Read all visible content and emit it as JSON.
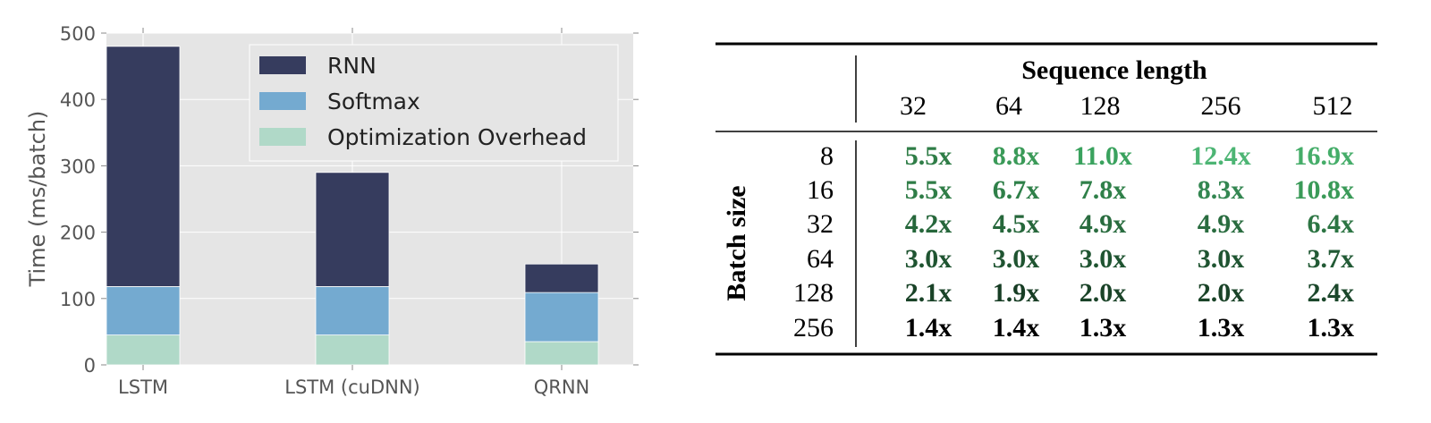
{
  "chart_data": {
    "type": "bar",
    "stacked": true,
    "categories": [
      "LSTM",
      "LSTM (cuDNN)",
      "QRNN"
    ],
    "series": [
      {
        "name": "Optimization Overhead",
        "values": [
          45,
          45,
          35
        ],
        "color": "#b0d9c8"
      },
      {
        "name": "Softmax",
        "values": [
          73,
          73,
          74
        ],
        "color": "#74aad0"
      },
      {
        "name": "RNN",
        "values": [
          362,
          172,
          43
        ],
        "color": "#363c5e"
      }
    ],
    "legend_order": [
      "RNN",
      "Softmax",
      "Optimization Overhead"
    ],
    "ylabel": "Time (ms/batch)",
    "xlabel": "",
    "ylim": [
      0,
      500
    ],
    "yticks": [
      "0",
      "100",
      "200",
      "300",
      "400",
      "500"
    ],
    "grid": true,
    "legend_position": "top-right",
    "plot_background": "#e5e5e5"
  },
  "table": {
    "header": "Sequence length",
    "row_header": "Batch size",
    "columns": [
      "32",
      "64",
      "128",
      "256",
      "512"
    ],
    "rows": [
      {
        "label": "8",
        "cells": [
          "5.5x",
          "8.8x",
          "11.0x",
          "12.4x",
          "16.9x"
        ],
        "colors": [
          "#2f7d47",
          "#3a9a58",
          "#3aa25e",
          "#4db574",
          "#45ad69"
        ]
      },
      {
        "label": "16",
        "cells": [
          "5.5x",
          "6.7x",
          "7.8x",
          "8.3x",
          "10.8x"
        ],
        "colors": [
          "#2f7d47",
          "#2f8049",
          "#2f8049",
          "#338651",
          "#3a9a58"
        ]
      },
      {
        "label": "32",
        "cells": [
          "4.2x",
          "4.5x",
          "4.9x",
          "4.9x",
          "6.4x"
        ],
        "colors": [
          "#26673b",
          "#26673b",
          "#296c3f",
          "#296c3f",
          "#2c7543"
        ]
      },
      {
        "label": "64",
        "cells": [
          "3.0x",
          "3.0x",
          "3.0x",
          "3.0x",
          "3.7x"
        ],
        "colors": [
          "#1f5431",
          "#1f5431",
          "#1f5431",
          "#1f5431",
          "#225a35"
        ]
      },
      {
        "label": "128",
        "cells": [
          "2.1x",
          "1.9x",
          "2.0x",
          "2.0x",
          "2.4x"
        ],
        "colors": [
          "#1a4328",
          "#173d24",
          "#1a4328",
          "#1a4328",
          "#1b472b"
        ]
      },
      {
        "label": "256",
        "cells": [
          "1.4x",
          "1.4x",
          "1.3x",
          "1.3x",
          "1.3x"
        ],
        "colors": [
          "#000000",
          "#000000",
          "#000000",
          "#000000",
          "#000000"
        ]
      }
    ]
  }
}
